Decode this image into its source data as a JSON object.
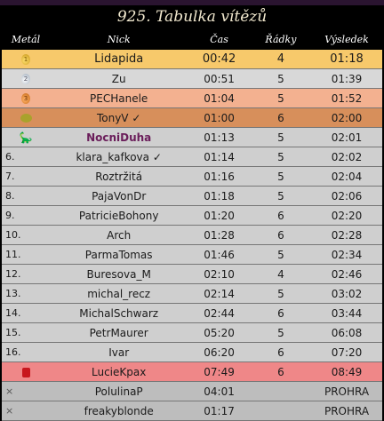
{
  "title": "925. Tabulka vítězů",
  "headers": {
    "medal": "Metál",
    "nick": "Nick",
    "time": "Čas",
    "rows": "Řádky",
    "result": "Výsledek"
  },
  "entries": [
    {
      "rank": "",
      "icon": "gold-medal",
      "nick": "Lidapida",
      "time": "00:42",
      "rows": "4",
      "result": "01:18"
    },
    {
      "rank": "",
      "icon": "silver-medal",
      "nick": "Zu",
      "time": "00:51",
      "rows": "5",
      "result": "01:39"
    },
    {
      "rank": "",
      "icon": "bronze-medal",
      "nick": "PECHanele",
      "time": "01:04",
      "rows": "5",
      "result": "01:52"
    },
    {
      "rank": "",
      "icon": "potato",
      "nick": "TonyV ✓",
      "time": "01:00",
      "rows": "6",
      "result": "02:00"
    },
    {
      "rank": "",
      "icon": "dinosaur",
      "nick": "NocniDuha",
      "time": "01:13",
      "rows": "5",
      "result": "02:01"
    },
    {
      "rank": "6.",
      "nick": "klara_kafkova ✓",
      "time": "01:14",
      "rows": "5",
      "result": "02:02"
    },
    {
      "rank": "7.",
      "nick": "Roztržitá",
      "time": "01:16",
      "rows": "5",
      "result": "02:04"
    },
    {
      "rank": "8.",
      "nick": "PajaVonDr",
      "time": "01:18",
      "rows": "5",
      "result": "02:06"
    },
    {
      "rank": "9.",
      "nick": "PatricieBohony",
      "time": "01:20",
      "rows": "6",
      "result": "02:20"
    },
    {
      "rank": "10.",
      "nick": "Arch",
      "time": "01:28",
      "rows": "6",
      "result": "02:28"
    },
    {
      "rank": "11.",
      "nick": "ParmaTomas",
      "time": "01:46",
      "rows": "5",
      "result": "02:34"
    },
    {
      "rank": "12.",
      "nick": "Buresova_M",
      "time": "02:10",
      "rows": "4",
      "result": "02:46"
    },
    {
      "rank": "13.",
      "nick": "michal_recz",
      "time": "02:14",
      "rows": "5",
      "result": "03:02"
    },
    {
      "rank": "14.",
      "nick": "MichalSchwarz",
      "time": "02:44",
      "rows": "6",
      "result": "03:44"
    },
    {
      "rank": "15.",
      "nick": "PetrMaurer",
      "time": "05:20",
      "rows": "5",
      "result": "06:08"
    },
    {
      "rank": "16.",
      "nick": "Ivar",
      "time": "06:20",
      "rows": "6",
      "result": "07:20"
    },
    {
      "rank": "",
      "icon": "red-box",
      "nick": "LucieKpax",
      "time": "07:49",
      "rows": "6",
      "result": "08:49"
    },
    {
      "rank": "×",
      "nick": "PolulinaP",
      "time": "04:01",
      "rows": "",
      "result": "PROHRA"
    },
    {
      "rank": "×",
      "nick": "freakyblonde",
      "time": "01:17",
      "rows": "",
      "result": "PROHRA"
    }
  ]
}
